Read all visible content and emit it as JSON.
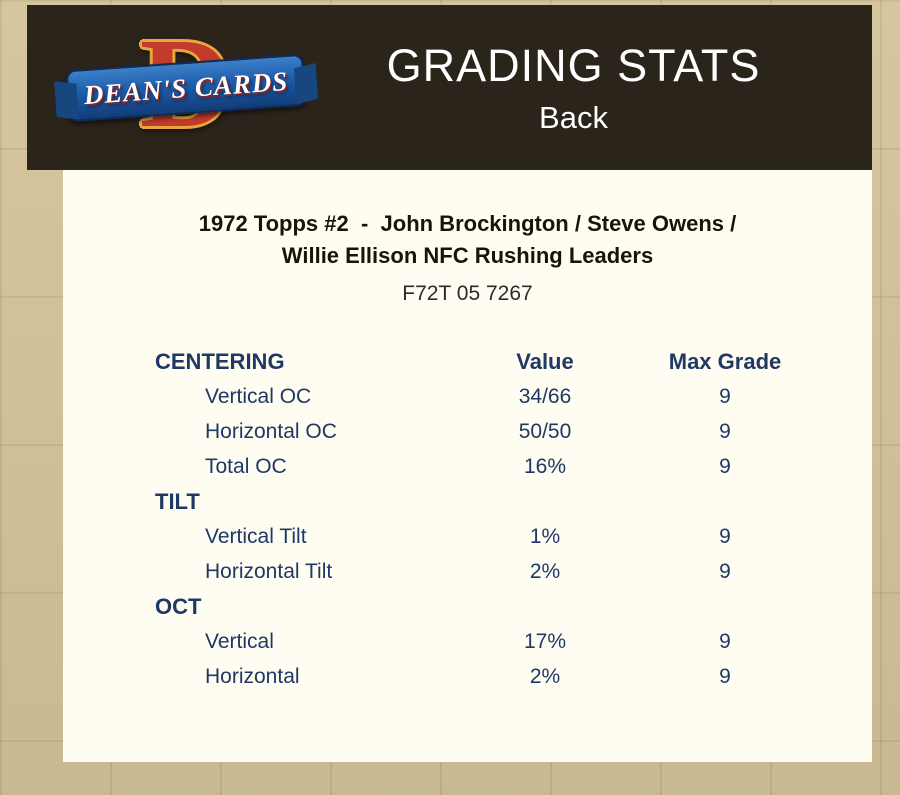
{
  "header": {
    "title": "GRADING STATS",
    "subtitle": "Back",
    "logo": {
      "letter": "D",
      "text": "DEAN'S CARDS"
    }
  },
  "card": {
    "title_line1": "1972 Topps #2  -  John Brockington / Steve Owens /",
    "title_line2": "Willie Ellison NFC Rushing Leaders",
    "code": "F72T 05 7267"
  },
  "table": {
    "headers": {
      "label": "CENTERING",
      "value": "Value",
      "max": "Max Grade"
    },
    "sections": [
      {
        "rows": [
          {
            "label": "Vertical OC",
            "value": "34/66",
            "max": "9"
          },
          {
            "label": "Horizontal OC",
            "value": "50/50",
            "max": "9"
          },
          {
            "label": "Total OC",
            "value": "16%",
            "max": "9"
          }
        ]
      },
      {
        "name": "TILT",
        "rows": [
          {
            "label": "Vertical Tilt",
            "value": "1%",
            "max": "9"
          },
          {
            "label": "Horizontal Tilt",
            "value": "2%",
            "max": "9"
          }
        ]
      },
      {
        "name": "OCT",
        "rows": [
          {
            "label": "Vertical",
            "value": "17%",
            "max": "9"
          },
          {
            "label": "Horizontal",
            "value": "2%",
            "max": "9"
          }
        ]
      }
    ]
  },
  "colors": {
    "accent_navy": "#1f3864",
    "header_bg": "#2b241b",
    "panel_bg": "#fffdf2",
    "page_bg": "#d4c39b",
    "logo_red": "#c23b2b",
    "logo_gold": "#e8a53e",
    "logo_blue": "#1d5dab"
  }
}
